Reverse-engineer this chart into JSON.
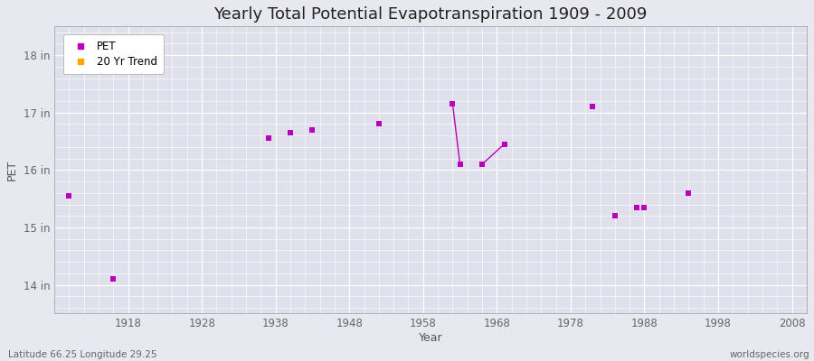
{
  "title": "Yearly Total Potential Evapotranspiration 1909 - 2009",
  "xlabel": "Year",
  "ylabel": "PET",
  "subtitle_left": "Latitude 66.25 Longitude 29.25",
  "subtitle_right": "worldspecies.org",
  "xlim": [
    1908,
    2010
  ],
  "ylim": [
    13.5,
    18.5
  ],
  "yticks": [
    14,
    15,
    16,
    17,
    18
  ],
  "ytick_labels": [
    "14 in",
    "15 in",
    "16 in",
    "17 in",
    "18 in"
  ],
  "xticks": [
    1918,
    1928,
    1938,
    1948,
    1958,
    1968,
    1978,
    1988,
    1998,
    2008
  ],
  "pet_years": [
    1910,
    1916,
    1937,
    1940,
    1943,
    1952,
    1962,
    1963,
    1966,
    1969,
    1981,
    1984,
    1987,
    1988,
    1994
  ],
  "pet_values": [
    15.55,
    14.1,
    16.55,
    16.65,
    16.7,
    16.8,
    17.15,
    16.1,
    16.1,
    16.45,
    17.1,
    15.2,
    15.35,
    15.35,
    15.6
  ],
  "trend_segments": [
    {
      "x": [
        1962,
        1963
      ],
      "y": [
        17.15,
        16.1
      ]
    },
    {
      "x": [
        1966,
        1969
      ],
      "y": [
        16.1,
        16.45
      ]
    }
  ],
  "pet_color": "#BB00BB",
  "trend_color": "#FFA500",
  "bg_color": "#E8E8F0",
  "plot_bg_color": "#E0E0EC",
  "grid_major_color": "#FFFFFF",
  "grid_minor_color": "#EBEBF5",
  "legend_entries": [
    "PET",
    "20 Yr Trend"
  ],
  "legend_colors": [
    "#BB00BB",
    "#FFA500"
  ],
  "marker_size": 4,
  "title_fontsize": 13,
  "axis_fontsize": 9,
  "tick_fontsize": 8.5
}
